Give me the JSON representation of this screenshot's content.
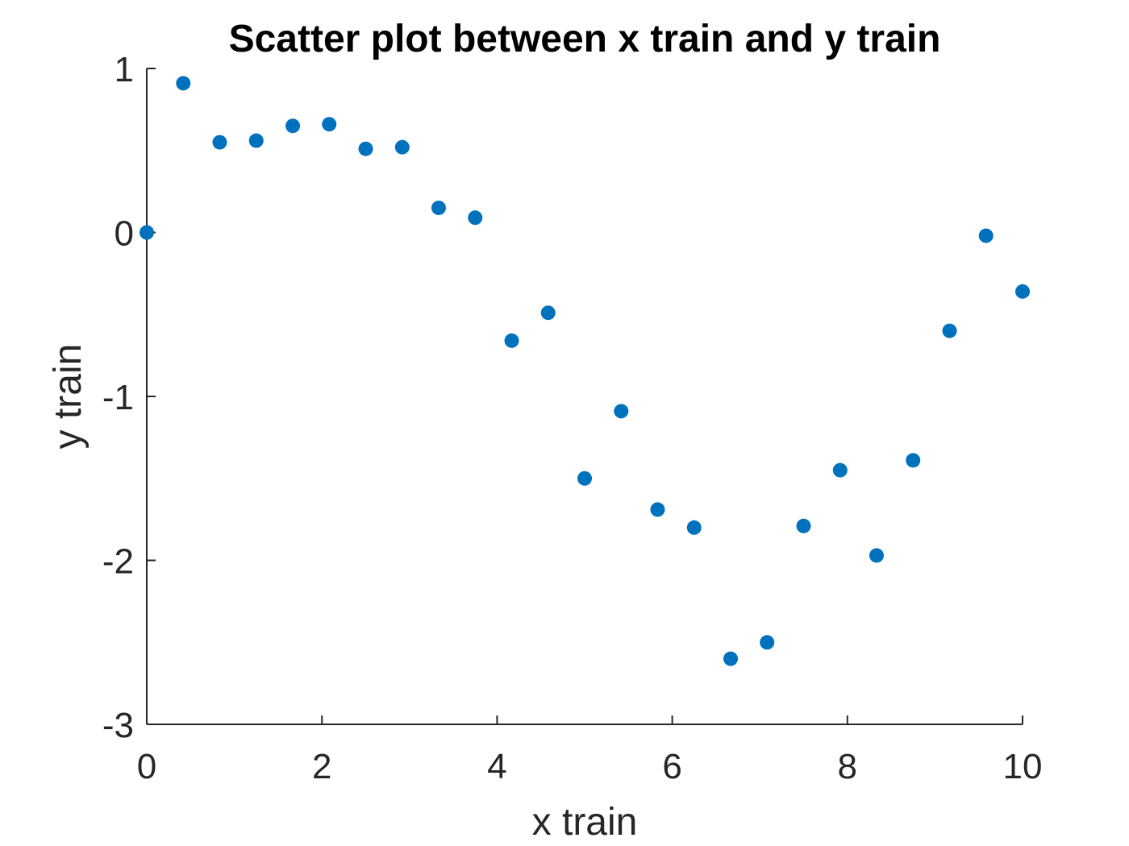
{
  "chart_data": {
    "type": "scatter",
    "title": "Scatter plot between x train and y train",
    "xlabel": "x train",
    "ylabel": "y train",
    "xlim": [
      0,
      10
    ],
    "ylim": [
      -3,
      1
    ],
    "xticks": [
      0,
      2,
      4,
      6,
      8,
      10
    ],
    "xtick_labels": [
      "0",
      "2",
      "4",
      "6",
      "8",
      "10"
    ],
    "yticks": [
      1,
      0,
      -1,
      -2,
      -3
    ],
    "ytick_labels": [
      "1",
      "0",
      "-1",
      "-2",
      "-3"
    ],
    "grid": false,
    "marker_color": "#0072BD",
    "series": [
      {
        "x": [
          0,
          0.417,
          0.833,
          1.25,
          1.667,
          2.083,
          2.5,
          2.917,
          3.333,
          3.75,
          4.167,
          4.583,
          5.0,
          5.417,
          5.833,
          6.25,
          6.667,
          7.083,
          7.5,
          7.917,
          8.333,
          8.75,
          9.167,
          9.583,
          10.0
        ],
        "y": [
          0.0,
          0.91,
          0.55,
          0.56,
          0.65,
          0.66,
          0.51,
          0.52,
          0.15,
          0.09,
          -0.66,
          -0.49,
          -1.5,
          -1.09,
          -1.69,
          -1.8,
          -2.6,
          -2.5,
          -1.79,
          -1.45,
          -1.97,
          -1.39,
          -0.6,
          -0.02,
          -0.36
        ]
      }
    ]
  }
}
